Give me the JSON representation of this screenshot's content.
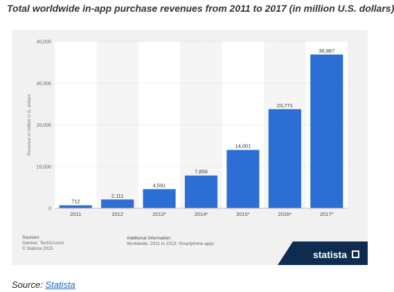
{
  "page": {
    "title": "Total worldwide in-app purchase revenues from 2011 to 2017 (in million U.S. dollars)"
  },
  "footer": {
    "sources_heading": "Sources:",
    "sources_lines": [
      "Gartner; TechCrunch",
      "© Statista 2015"
    ],
    "additional_heading": "Additional Information:",
    "additional_line": "Worldwide, 2011 to 2013; Smartphone apps"
  },
  "brand": {
    "name": "statista",
    "color": "#0d2c4f"
  },
  "source_note": {
    "prefix": "Source:",
    "link": "Statista"
  },
  "colors": {
    "bar": "#2c6ed3",
    "plot_bg": "#ffffff",
    "panel_bg": "#f1f1f1",
    "link": "#1565c0"
  },
  "chart_data": {
    "type": "bar",
    "categories": [
      "2011",
      "2012",
      "2013*",
      "2014*",
      "2015*",
      "2016*",
      "2017*"
    ],
    "values": [
      712,
      2111,
      4591,
      7856,
      14001,
      23771,
      36887
    ],
    "value_labels": [
      "712",
      "2,111",
      "4,591",
      "7,856",
      "14,001",
      "23,771",
      "36,887"
    ],
    "ylabel": "Revenue in million U.S. dollars",
    "ylim": [
      0,
      40000
    ],
    "yticks": [
      0,
      10000,
      20000,
      30000,
      40000
    ],
    "ytick_labels": [
      "0",
      "10,000",
      "20,000",
      "30,000",
      "40,000"
    ],
    "grid": true,
    "legend": "none"
  }
}
